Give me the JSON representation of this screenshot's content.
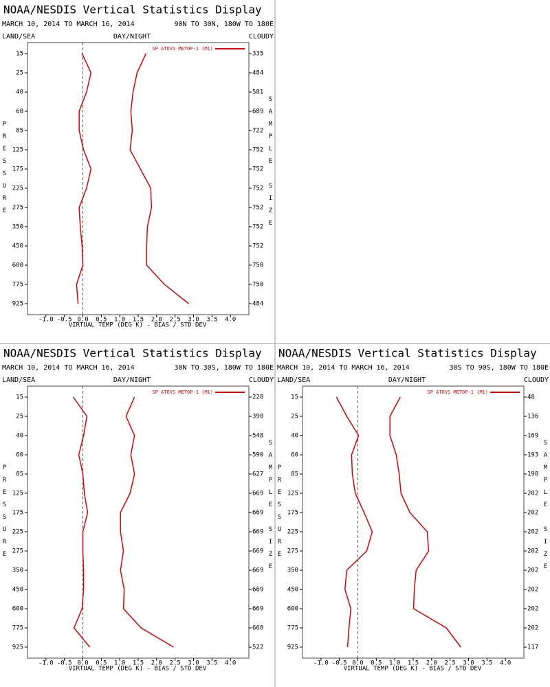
{
  "chart_data": [
    {
      "type": "line",
      "title": "NOAA/NESDIS Vertical Statistics Display",
      "subtitle": "MARCH 10, 2014 TO MARCH 16, 2014",
      "region": "90N TO 30N, 180W TO 180E",
      "left_label": "LAND/SEA",
      "center_label": "DAY/NIGHT",
      "right_label": "CLOUDY",
      "ylabel": "PRESSURE",
      "y2label": "SAMPLE SIZE",
      "xlabel": "VIRTUAL TEMP (DEG K) - BIAS / STD DEV",
      "categories": [
        15,
        25,
        40,
        60,
        85,
        125,
        175,
        225,
        275,
        350,
        450,
        600,
        775,
        925
      ],
      "sample_sizes": [
        335,
        484,
        581,
        689,
        722,
        752,
        752,
        752,
        752,
        752,
        752,
        750,
        750,
        484
      ],
      "series": [
        {
          "name": "SP ATOVS METOP-1 (M1)",
          "color": "#e00000",
          "values": [
            -0.02,
            0.22,
            0.1,
            -0.1,
            -0.1,
            0.02,
            0.22,
            0.1,
            -0.1,
            -0.07,
            -0.02,
            0,
            -0.17,
            -0.13
          ]
        },
        {
          "color": "#e00000",
          "values": [
            1.71,
            1.47,
            1.36,
            1.3,
            1.34,
            1.28,
            1.56,
            1.84,
            1.86,
            1.75,
            1.73,
            1.73,
            2.21,
            2.87
          ]
        }
      ],
      "xlim": [
        -1.5,
        4.5
      ],
      "xticks": [
        {
          "value": -1,
          "label": "-1.0"
        },
        -0.5,
        {
          "value": 0,
          "label": "0.0"
        },
        0.5,
        {
          "value": 1,
          "label": "1.0"
        },
        1.5,
        {
          "value": 2,
          "label": "2.0"
        },
        2.5,
        {
          "value": 3,
          "label": "3.0"
        },
        3.5,
        {
          "value": 4,
          "label": "4.0"
        }
      ],
      "zero_line": true
    },
    {
      "type": "line",
      "title": "NOAA/NESDIS Vertical Statistics Display",
      "subtitle": "MARCH 10, 2014 TO MARCH 16, 2014",
      "region": "30N TO 30S, 180W TO 180E",
      "left_label": "LAND/SEA",
      "center_label": "DAY/NIGHT",
      "right_label": "CLOUDY",
      "ylabel": "PRESSURE",
      "y2label": "SAMPLE SIZE",
      "xlabel": "VIRTUAL TEMP (DEG K) - BIAS / STD DEV",
      "categories": [
        15,
        25,
        40,
        60,
        85,
        125,
        175,
        225,
        275,
        350,
        450,
        600,
        775,
        925
      ],
      "sample_sizes": [
        228,
        390,
        548,
        590,
        627,
        669,
        669,
        669,
        669,
        669,
        669,
        669,
        668,
        522
      ],
      "series": [
        {
          "name": "SP ATOVS METOP-1 (M1)",
          "color": "#e00000",
          "values": [
            -0.26,
            0.11,
            0.02,
            -0.11,
            0,
            0.04,
            0.13,
            0,
            0,
            0.02,
            0.02,
            -0.02,
            -0.24,
            0.19
          ]
        },
        {
          "color": "#e00000",
          "values": [
            1.4,
            1.17,
            1.4,
            1.3,
            1.4,
            1.28,
            1.02,
            1.02,
            1.1,
            1.02,
            1.12,
            1.1,
            1.58,
            2.46
          ]
        }
      ],
      "xlim": [
        -1.5,
        4.5
      ],
      "xticks": [
        {
          "value": -1,
          "label": "-1.0"
        },
        -0.5,
        {
          "value": 0,
          "label": "0.0"
        },
        0.5,
        {
          "value": 1,
          "label": "1.0"
        },
        1.5,
        {
          "value": 2,
          "label": "2.0"
        },
        2.5,
        {
          "value": 3,
          "label": "3.0"
        },
        3.5,
        {
          "value": 4,
          "label": "4.0"
        }
      ],
      "zero_line": true
    },
    {
      "type": "line",
      "title": "NOAA/NESDIS Vertical Statistics Display",
      "subtitle": "MARCH 10, 2014 TO MARCH 16, 2014",
      "region": "30S TO 90S, 180W TO 180E",
      "left_label": "LAND/SEA",
      "center_label": "DAY/NIGHT",
      "right_label": "CLOUDY",
      "ylabel": "PRESSURE",
      "y2label": "SAMPLE SIZE",
      "xlabel": "VIRTUAL TEMP (DEG K) - BIAS / STD DEV",
      "categories": [
        15,
        25,
        40,
        60,
        85,
        125,
        175,
        225,
        275,
        350,
        450,
        600,
        775,
        925
      ],
      "sample_sizes": [
        48,
        136,
        169,
        193,
        198,
        202,
        202,
        202,
        202,
        202,
        202,
        202,
        202,
        117
      ],
      "series": [
        {
          "name": "SP ATOVS METOP-1 (M1)",
          "color": "#e00000",
          "values": [
            -0.58,
            -0.3,
            0.02,
            -0.17,
            -0.15,
            -0.07,
            0.17,
            0.39,
            0.24,
            -0.3,
            -0.35,
            -0.19,
            -0.24,
            -0.28
          ]
        },
        {
          "color": "#e00000",
          "values": [
            1.15,
            0.87,
            0.87,
            1.04,
            1.12,
            1.17,
            1.41,
            1.88,
            1.92,
            1.58,
            1.53,
            1.51,
            2.4,
            2.79
          ]
        }
      ],
      "xlim": [
        -1.5,
        4.5
      ],
      "xticks": [
        {
          "value": -1,
          "label": "-1.0"
        },
        -0.5,
        {
          "value": 0,
          "label": "0.0"
        },
        0.5,
        {
          "value": 1,
          "label": "1.0"
        },
        1.5,
        {
          "value": 2,
          "label": "2.0"
        },
        2.5,
        {
          "value": 3,
          "label": "3.0"
        },
        3.5,
        {
          "value": 4,
          "label": "4.0"
        }
      ],
      "zero_line": true
    }
  ]
}
